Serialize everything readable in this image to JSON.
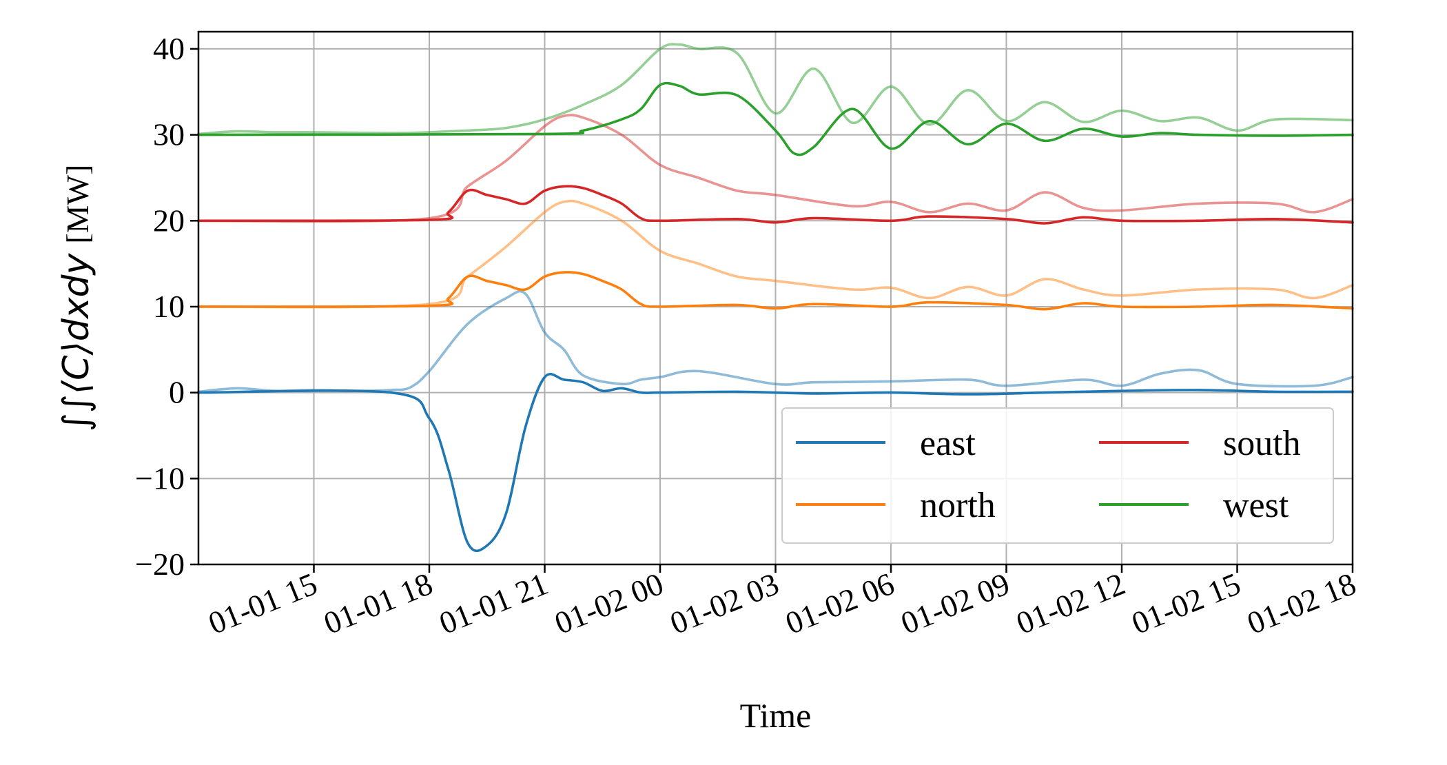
{
  "chart_data": {
    "type": "line",
    "xlabel": "Time",
    "ylabel": "∫∫⟨C⟩dxdy",
    "ylabel_unit": "[MW]",
    "ylim": [
      -20,
      42
    ],
    "xlim": [
      "01-01 12",
      "01-02 18"
    ],
    "y_ticks": [
      -20,
      -10,
      0,
      10,
      20,
      30,
      40
    ],
    "y_tick_labels": [
      "−20",
      "−10",
      "0",
      "10",
      "20",
      "30",
      "40"
    ],
    "x_ticks": [
      "01-01 15",
      "01-01 18",
      "01-01 21",
      "01-02 00",
      "01-02 03",
      "01-02 06",
      "01-02 09",
      "01-02 12",
      "01-02 15",
      "01-02 18"
    ],
    "grid": true,
    "legend": {
      "placement": "lower-right",
      "columns": 2
    },
    "series": [
      {
        "name": "east",
        "color": "#1f77b4",
        "x": [
          "01-01 12",
          "01-01 17",
          "01-01 18",
          "01-01 18:30",
          "01-01 19",
          "01-01 19:30",
          "01-01 20",
          "01-01 20:30",
          "01-01 21",
          "01-01 21:30",
          "01-01 22",
          "01-01 22:30",
          "01-01 23",
          "01-01 23:30",
          "01-02 00",
          "01-02 02",
          "01-02 04",
          "01-02 06",
          "01-02 08",
          "01-02 10",
          "01-02 12",
          "01-02 14",
          "01-02 16",
          "01-02 18"
        ],
        "y": [
          0,
          0,
          -3,
          -9,
          -17.5,
          -17.8,
          -14,
          -4,
          1.8,
          1.5,
          1.2,
          0.2,
          0.5,
          0,
          0,
          0.1,
          -0.1,
          0,
          -0.2,
          0,
          0.2,
          0.3,
          0.1,
          0.1
        ]
      },
      {
        "name": "east (faded)",
        "color": "#1f77b4",
        "faded": true,
        "x": [
          "01-01 12",
          "01-01 13",
          "01-01 14",
          "01-01 15",
          "01-01 16",
          "01-01 17",
          "01-01 17:30",
          "01-01 18",
          "01-01 19",
          "01-01 20",
          "01-01 20:30",
          "01-01 21",
          "01-01 21:30",
          "01-01 22",
          "01-01 23",
          "01-01 23:30",
          "01-02 00",
          "01-02 01",
          "01-02 03",
          "01-02 04",
          "01-02 06",
          "01-02 08",
          "01-02 09",
          "01-02 11",
          "01-02 12",
          "01-02 13",
          "01-02 14",
          "01-02 15",
          "01-02 17",
          "01-02 18"
        ],
        "y": [
          0.1,
          0.5,
          0.2,
          0.3,
          0.2,
          0.3,
          0.6,
          2.5,
          8,
          11,
          11.5,
          7,
          5,
          2,
          1,
          1.5,
          1.8,
          2.5,
          1,
          1.2,
          1.3,
          1.5,
          0.8,
          1.5,
          0.8,
          2.2,
          2.6,
          1,
          0.8,
          1.8
        ]
      },
      {
        "name": "north",
        "color": "#ff7f0e",
        "x": [
          "01-01 12",
          "01-01 18",
          "01-01 18:30",
          "01-01 19",
          "01-01 19:30",
          "01-01 20",
          "01-01 20:30",
          "01-01 21",
          "01-01 21:30",
          "01-01 22",
          "01-01 22:30",
          "01-01 23",
          "01-01 23:30",
          "01-02 00",
          "01-02 02",
          "01-02 03",
          "01-02 04",
          "01-02 06",
          "01-02 07",
          "01-02 09",
          "01-02 10",
          "01-02 11",
          "01-02 12",
          "01-02 14",
          "01-02 16",
          "01-02 18"
        ],
        "y": [
          10,
          10.1,
          11,
          13.5,
          13,
          12.5,
          12,
          13.5,
          14,
          13.8,
          13,
          12,
          10.3,
          10,
          10.2,
          9.8,
          10.3,
          10,
          10.5,
          10.2,
          9.7,
          10.4,
          10,
          10,
          10.2,
          9.8
        ]
      },
      {
        "name": "north (faded)",
        "color": "#ff7f0e",
        "faded": true,
        "x": [
          "01-01 12",
          "01-01 18",
          "01-01 19",
          "01-01 20",
          "01-01 21",
          "01-01 21:30",
          "01-01 22",
          "01-01 23",
          "01-02 00",
          "01-02 01",
          "01-02 02",
          "01-02 03",
          "01-02 05",
          "01-02 06",
          "01-02 07",
          "01-02 08",
          "01-02 09",
          "01-02 10",
          "01-02 11",
          "01-02 12",
          "01-02 14",
          "01-02 16",
          "01-02 17",
          "01-02 18"
        ],
        "y": [
          10,
          10.3,
          13.5,
          17,
          21,
          22.2,
          22,
          20,
          16.5,
          15,
          13.5,
          13,
          12,
          12.2,
          11,
          12.3,
          11.3,
          13.2,
          12,
          11.3,
          12,
          12,
          11,
          12.5
        ]
      },
      {
        "name": "south",
        "color": "#d62728",
        "x": [
          "01-01 12",
          "01-01 18",
          "01-01 18:30",
          "01-01 19",
          "01-01 19:30",
          "01-01 20",
          "01-01 20:30",
          "01-01 21",
          "01-01 21:30",
          "01-01 22",
          "01-01 22:30",
          "01-01 23",
          "01-01 23:30",
          "01-02 00",
          "01-02 02",
          "01-02 03",
          "01-02 04",
          "01-02 06",
          "01-02 07",
          "01-02 09",
          "01-02 10",
          "01-02 11",
          "01-02 12",
          "01-02 14",
          "01-02 16",
          "01-02 18"
        ],
        "y": [
          20,
          20.1,
          21,
          23.5,
          23,
          22.5,
          22,
          23.5,
          24,
          23.8,
          23,
          22,
          20.3,
          20,
          20.2,
          19.8,
          20.3,
          20,
          20.5,
          20.2,
          19.7,
          20.4,
          20,
          20,
          20.2,
          19.8
        ]
      },
      {
        "name": "south (faded)",
        "color": "#d62728",
        "faded": true,
        "x": [
          "01-01 12",
          "01-01 18",
          "01-01 19",
          "01-01 20",
          "01-01 21",
          "01-01 21:30",
          "01-01 22",
          "01-01 23",
          "01-02 00",
          "01-02 01",
          "01-02 02",
          "01-02 03",
          "01-02 05",
          "01-02 06",
          "01-02 07",
          "01-02 08",
          "01-02 09",
          "01-02 10",
          "01-02 11",
          "01-02 12",
          "01-02 14",
          "01-02 16",
          "01-02 17",
          "01-02 18"
        ],
        "y": [
          20,
          20.3,
          24,
          27,
          31,
          32.2,
          32,
          30,
          26.5,
          25,
          23.5,
          23,
          21.7,
          22.2,
          21,
          22,
          21.2,
          23.3,
          21.5,
          21.2,
          22,
          22,
          21,
          22.5
        ]
      },
      {
        "name": "west",
        "color": "#2ca02c",
        "x": [
          "01-01 12",
          "01-01 21",
          "01-01 22",
          "01-01 23",
          "01-01 23:30",
          "01-02 00",
          "01-02 00:30",
          "01-02 01",
          "01-02 02",
          "01-02 03",
          "01-02 03:30",
          "01-02 04",
          "01-02 05",
          "01-02 06",
          "01-02 07",
          "01-02 08",
          "01-02 09",
          "01-02 10",
          "01-02 11",
          "01-02 12",
          "01-02 13",
          "01-02 14",
          "01-02 16",
          "01-02 18"
        ],
        "y": [
          30,
          30.1,
          30.5,
          31.8,
          33,
          35.8,
          35.7,
          34.7,
          34.6,
          30.5,
          27.8,
          28.6,
          33,
          28.4,
          31.6,
          28.9,
          31.3,
          29.3,
          30.7,
          29.8,
          30.2,
          30,
          29.9,
          30
        ]
      },
      {
        "name": "west (faded)",
        "color": "#2ca02c",
        "faded": true,
        "x": [
          "01-01 12",
          "01-01 13",
          "01-01 14",
          "01-01 15",
          "01-01 17",
          "01-01 18",
          "01-01 19",
          "01-01 20",
          "01-01 21",
          "01-01 22",
          "01-01 23",
          "01-02 00",
          "01-02 00:30",
          "01-02 01",
          "01-02 02",
          "01-02 03",
          "01-02 04",
          "01-02 05",
          "01-02 06",
          "01-02 07",
          "01-02 08",
          "01-02 09",
          "01-02 10",
          "01-02 11",
          "01-02 12",
          "01-02 13",
          "01-02 14",
          "01-02 15",
          "01-02 16",
          "01-02 18"
        ],
        "y": [
          30.1,
          30.4,
          30.3,
          30.3,
          30.2,
          30.3,
          30.5,
          30.8,
          31.8,
          33.5,
          35.8,
          40,
          40.5,
          40,
          39.5,
          32.5,
          37.7,
          31.4,
          35.6,
          31.2,
          35.2,
          31.6,
          33.8,
          31.5,
          32.8,
          31.6,
          32,
          30.5,
          31.8,
          31.7
        ]
      }
    ]
  }
}
